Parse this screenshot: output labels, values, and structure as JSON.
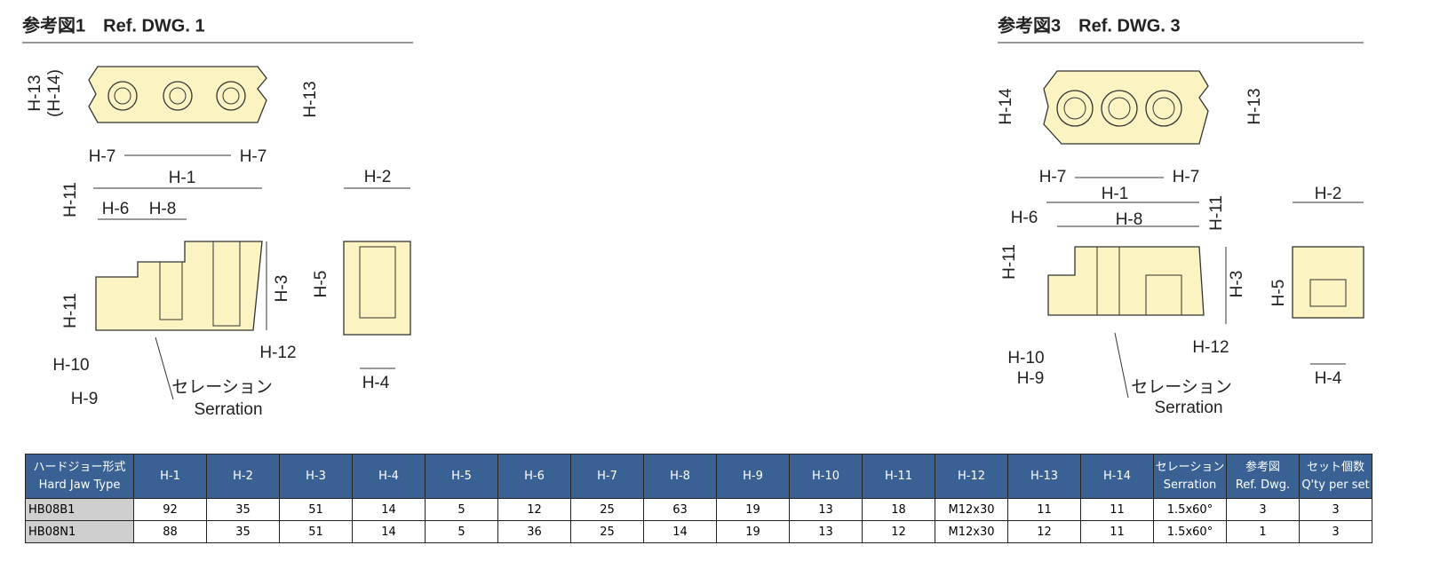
{
  "drawings": [
    {
      "title": "参考図1　Ref. DWG. 1",
      "labels": [
        "H-13",
        "(H-14)",
        "H-13",
        "H-7",
        "H-7",
        "H-1",
        "H-2",
        "H-11",
        "H-6",
        "H-8",
        "H-3",
        "H-5",
        "H-11",
        "H-12",
        "H-10",
        "H-4",
        "H-9",
        "セレーション",
        "Serration"
      ]
    },
    {
      "title": "参考図3　Ref. DWG. 3",
      "labels": [
        "H-14",
        "H-13",
        "H-7",
        "H-7",
        "H-1",
        "H-2",
        "H-6",
        "H-8",
        "H-11",
        "H-11",
        "H-3",
        "H-5",
        "H-12",
        "H-10",
        "H-9",
        "H-4",
        "セレーション",
        "Serration"
      ]
    }
  ],
  "table": {
    "header": [
      [
        "ハードジョー形式",
        "Hard Jaw Type"
      ],
      [
        "H-1"
      ],
      [
        "H-2"
      ],
      [
        "H-3"
      ],
      [
        "H-4"
      ],
      [
        "H-5"
      ],
      [
        "H-6"
      ],
      [
        "H-7"
      ],
      [
        "H-8"
      ],
      [
        "H-9"
      ],
      [
        "H-10"
      ],
      [
        "H-11"
      ],
      [
        "H-12"
      ],
      [
        "H-13"
      ],
      [
        "H-14"
      ],
      [
        "セレーション",
        "Serration"
      ],
      [
        "参考図",
        "Ref. Dwg."
      ],
      [
        "セット個数",
        "Q'ty per set"
      ]
    ],
    "rows": [
      [
        "HB08B1",
        92,
        35,
        51,
        14,
        5,
        12,
        25,
        63,
        19,
        13,
        18,
        "M12x30",
        11,
        11,
        "1.5x60°",
        3,
        3
      ],
      [
        "HB08N1",
        88,
        35,
        51,
        14,
        5,
        36,
        25,
        14,
        19,
        13,
        12,
        "M12x30",
        12,
        11,
        "1.5x60°",
        1,
        3
      ]
    ]
  }
}
